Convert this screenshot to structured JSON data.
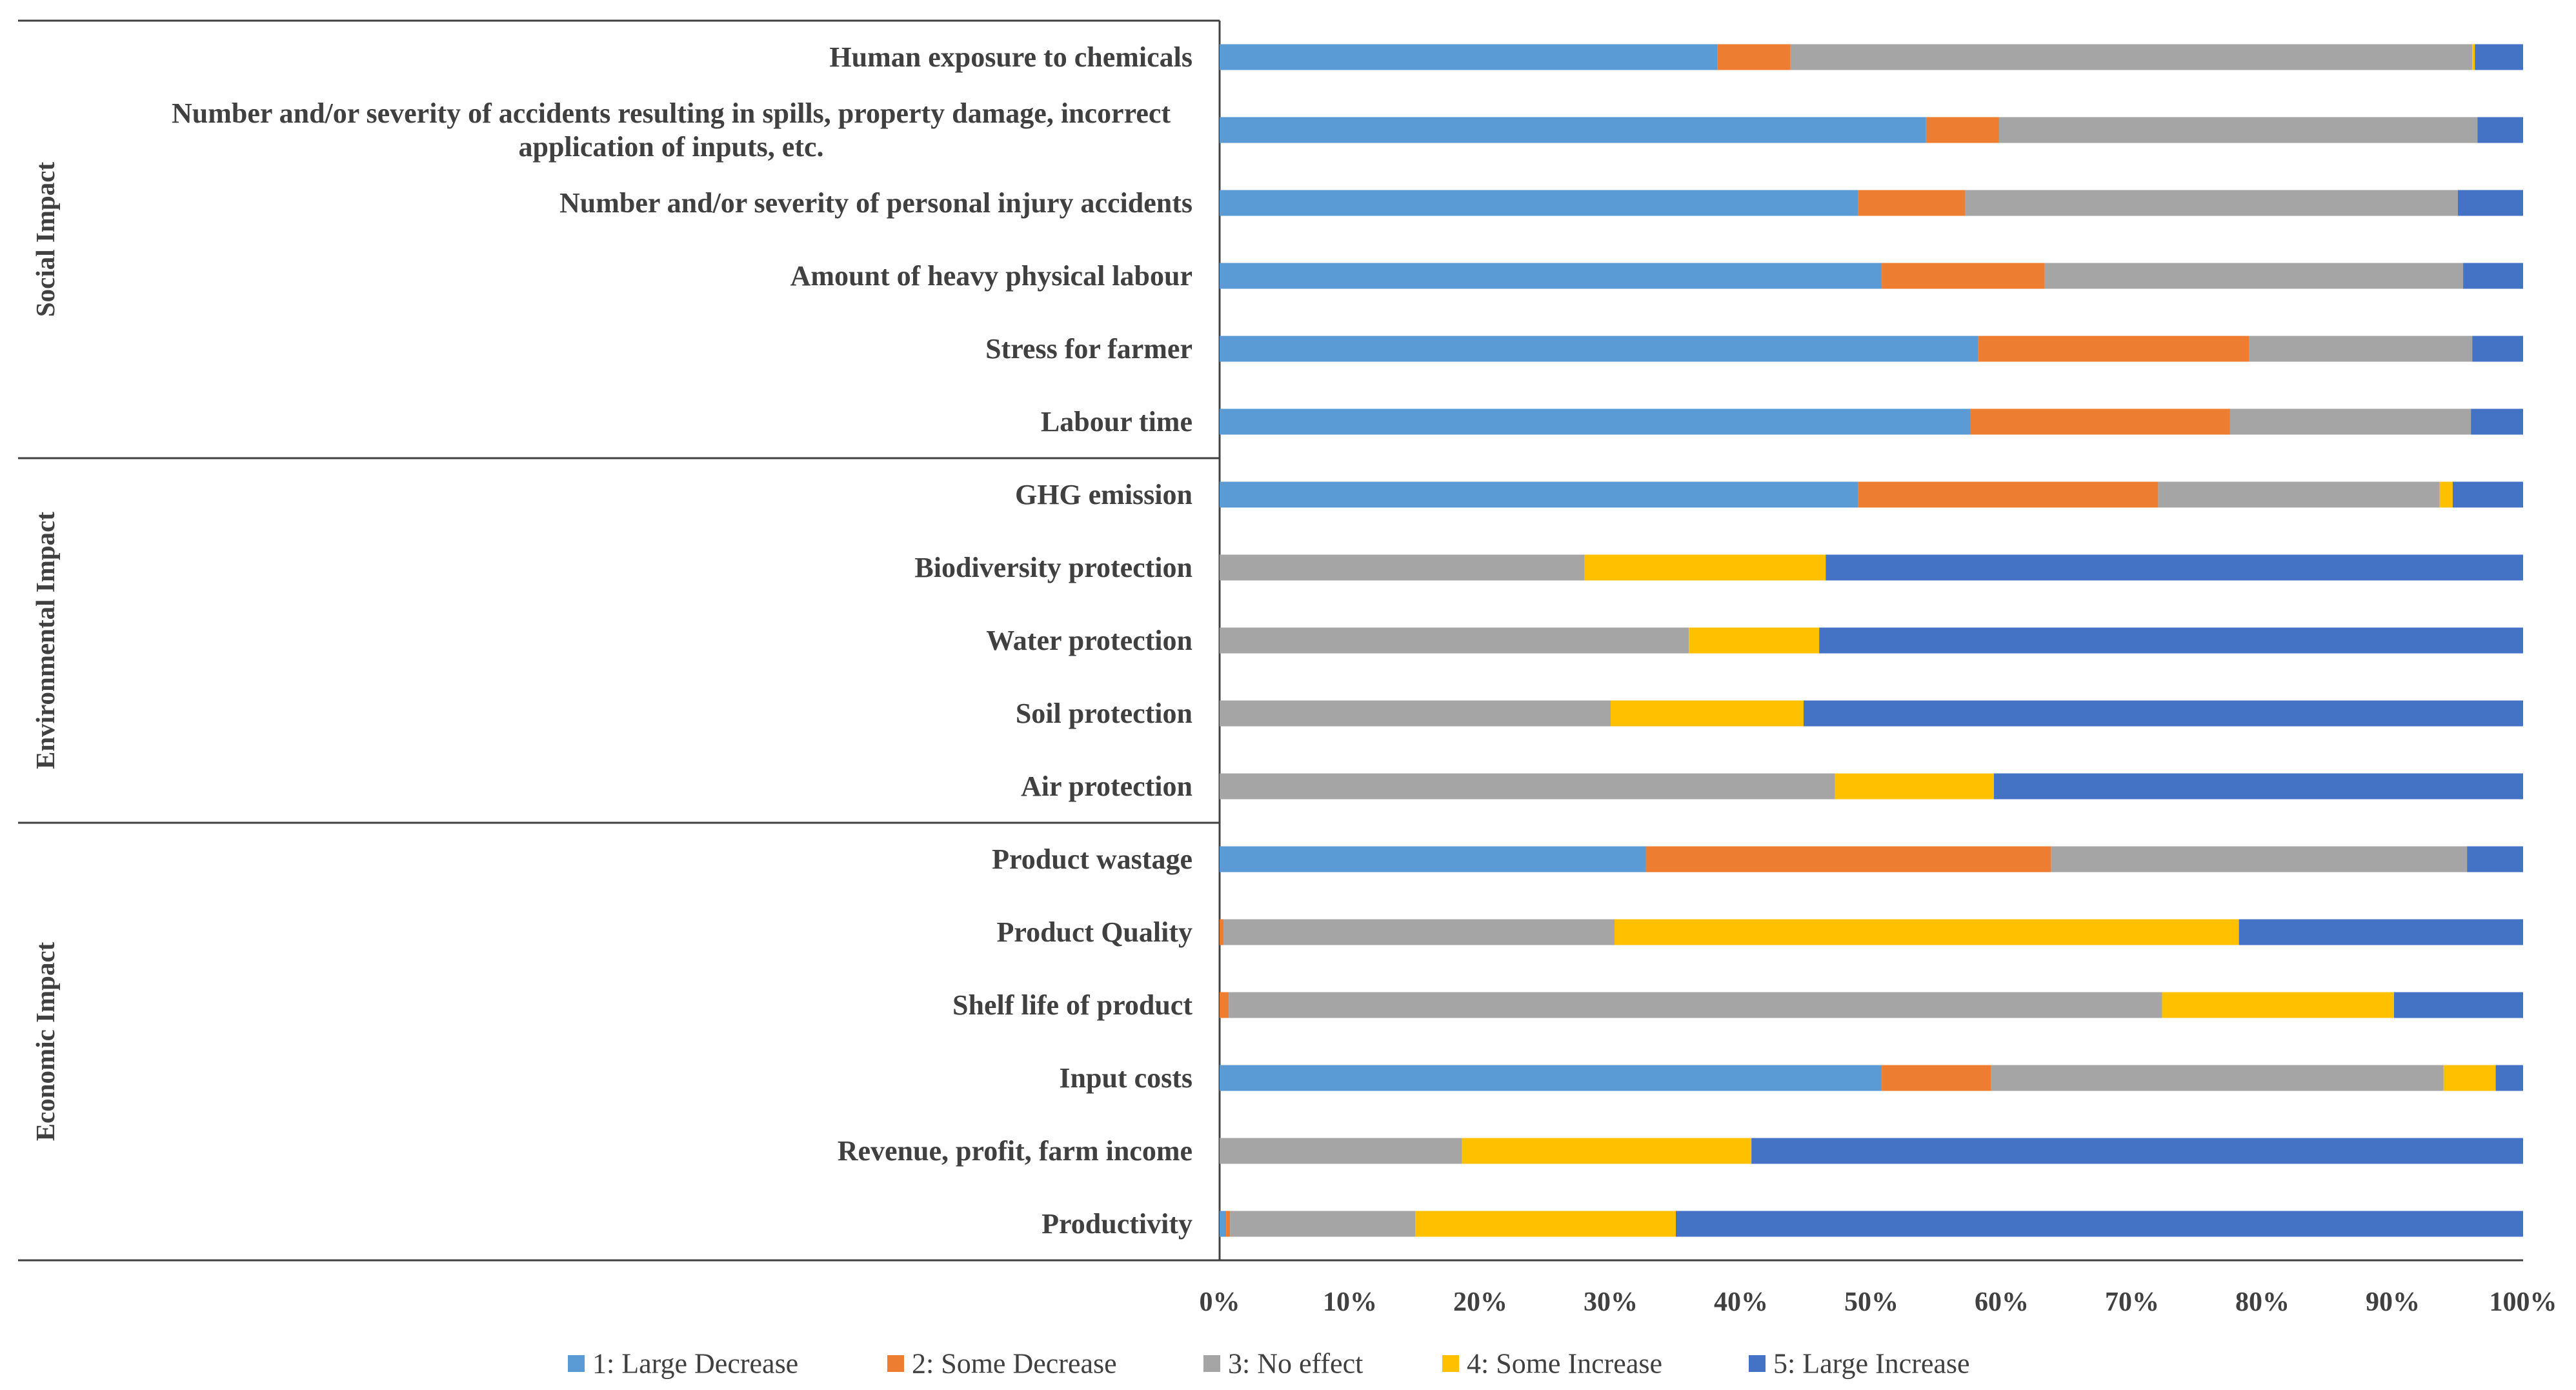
{
  "chart_data": {
    "type": "bar",
    "stacked": true,
    "orientation": "horizontal",
    "normalized_percent": true,
    "title": "",
    "xlabel": "",
    "ylabel": "",
    "xlim": [
      0,
      100
    ],
    "x_ticks": [
      "0%",
      "10%",
      "20%",
      "30%",
      "40%",
      "50%",
      "60%",
      "70%",
      "80%",
      "90%",
      "100%"
    ],
    "legend_position": "bottom",
    "series": [
      {
        "name": "1: Large Decrease",
        "color": "#5B9BD5"
      },
      {
        "name": "2: Some Decrease",
        "color": "#ED7D31"
      },
      {
        "name": "3: No effect",
        "color": "#A5A5A5"
      },
      {
        "name": "4: Some Increase",
        "color": "#FFC000"
      },
      {
        "name": "5: Large Increase",
        "color": "#4472C4"
      }
    ],
    "groups": [
      {
        "name": "Social Impact",
        "categories": [
          {
            "label": [
              "Human exposure to chemicals"
            ],
            "values": [
              38.2,
              5.6,
              52.3,
              0.2,
              3.7
            ]
          },
          {
            "label": [
              "Number and/or severity of accidents resulting in spills, property damage, incorrect",
              "application of inputs, etc."
            ],
            "values": [
              54.2,
              5.6,
              36.7,
              0,
              3.5
            ]
          },
          {
            "label": [
              "Number and/or severity of personal injury accidents"
            ],
            "values": [
              49.0,
              8.2,
              37.8,
              0,
              5.0
            ]
          },
          {
            "label": [
              "Amount of heavy physical labour"
            ],
            "values": [
              50.8,
              12.5,
              32.1,
              0,
              4.6
            ]
          },
          {
            "label": [
              "Stress for farmer"
            ],
            "values": [
              58.2,
              20.8,
              17.1,
              0,
              3.9
            ]
          },
          {
            "label": [
              "Labour time"
            ],
            "values": [
              57.6,
              19.9,
              18.5,
              0,
              4.0
            ]
          }
        ]
      },
      {
        "name": "Environmental Impact",
        "categories": [
          {
            "label": [
              "GHG emission"
            ],
            "values": [
              49.0,
              23.0,
              21.6,
              1.0,
              5.4
            ]
          },
          {
            "label": [
              "Biodiversity protection"
            ],
            "values": [
              0,
              0,
              28.0,
              18.5,
              53.5
            ]
          },
          {
            "label": [
              "Water protection"
            ],
            "values": [
              0,
              0,
              36.0,
              10.0,
              54.0
            ]
          },
          {
            "label": [
              "Soil protection"
            ],
            "values": [
              0,
              0,
              30.0,
              14.8,
              55.2
            ]
          },
          {
            "label": [
              "Air protection"
            ],
            "values": [
              0,
              0,
              47.2,
              12.2,
              40.6
            ]
          }
        ]
      },
      {
        "name": "Economic Impact",
        "categories": [
          {
            "label": [
              "Product wastage"
            ],
            "values": [
              32.7,
              31.1,
              31.9,
              0,
              4.3
            ]
          },
          {
            "label": [
              "Product Quality"
            ],
            "values": [
              0,
              0.3,
              30.0,
              47.9,
              21.8
            ]
          },
          {
            "label": [
              "Shelf life of product"
            ],
            "values": [
              0,
              0.7,
              71.6,
              17.8,
              9.9
            ]
          },
          {
            "label": [
              "Input costs"
            ],
            "values": [
              50.8,
              8.4,
              34.7,
              4.0,
              2.1
            ]
          },
          {
            "label": [
              "Revenue, profit, farm income"
            ],
            "values": [
              0,
              0,
              18.6,
              22.2,
              59.2
            ]
          },
          {
            "label": [
              "Productivity"
            ],
            "values": [
              0.5,
              0.3,
              14.2,
              20.0,
              65.0
            ]
          }
        ]
      }
    ]
  }
}
